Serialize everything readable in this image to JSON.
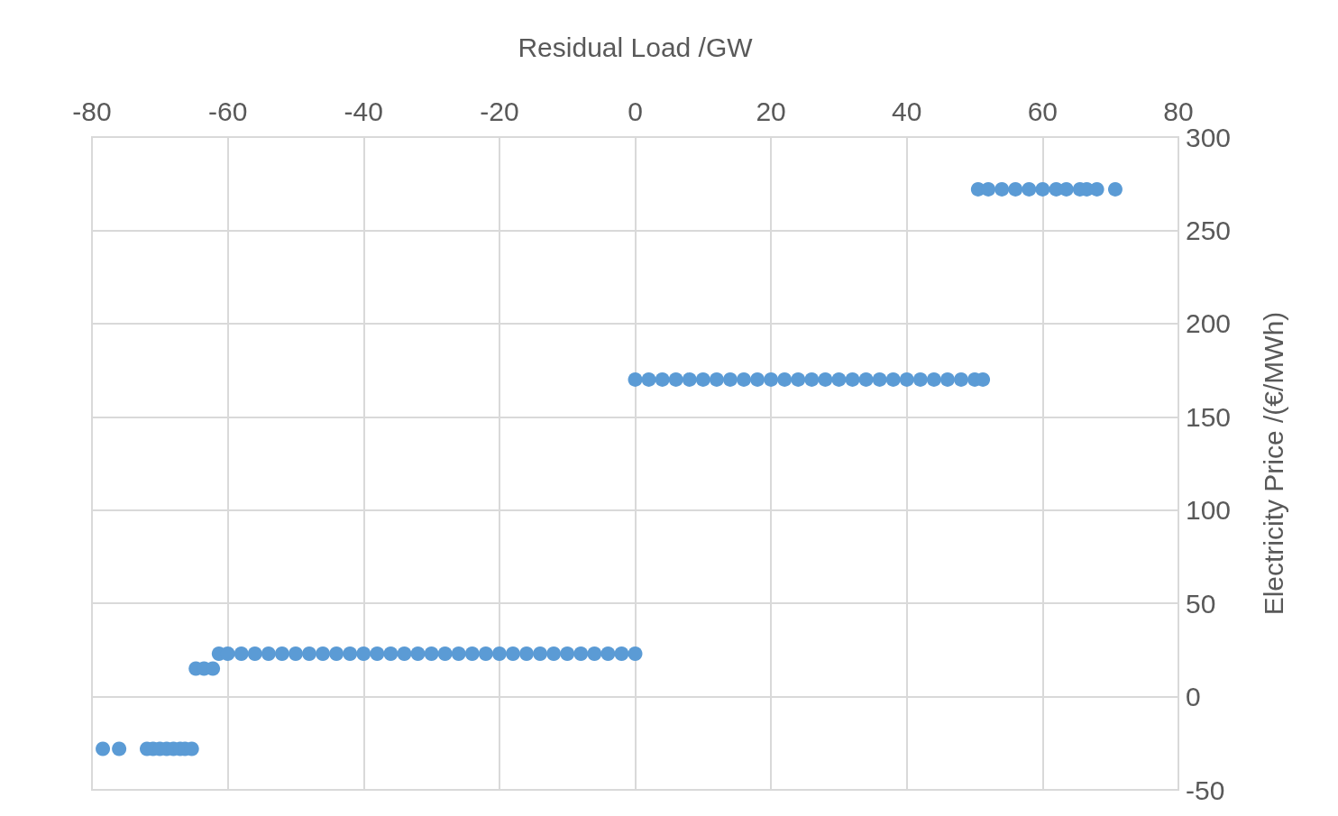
{
  "chart_data": {
    "type": "scatter",
    "xlabel": "Residual Load /GW",
    "ylabel": "Electricity Price /(€/MWh)",
    "xlim": [
      -80,
      80
    ],
    "xticks": [
      -80,
      -60,
      -40,
      -20,
      0,
      20,
      40,
      60,
      80
    ],
    "ylim": [
      -50,
      300
    ],
    "yticks": [
      -50,
      0,
      50,
      100,
      150,
      200,
      250,
      300
    ],
    "grid": true,
    "marker": "circle",
    "series": [
      {
        "color": "#5b9bd5",
        "x": [
          -78.4,
          -76,
          -71.9,
          -71,
          -70,
          -69,
          -68,
          -67,
          -66.3,
          -65.3,
          -64.7,
          -63.5,
          -62.2,
          -61.3,
          -60,
          -58,
          -56,
          -54,
          -52,
          -50,
          -48,
          -46,
          -44,
          -42,
          -40,
          -38,
          -36,
          -34,
          -32,
          -30,
          -28,
          -26,
          -24,
          -22,
          -20,
          -18,
          -16,
          -14,
          -12,
          -10,
          -8,
          -6,
          -4,
          -2,
          0,
          0,
          2,
          4,
          6,
          8,
          10,
          12,
          14,
          16,
          18,
          20,
          22,
          24,
          26,
          28,
          30,
          32,
          34,
          36,
          38,
          40,
          42,
          44,
          46,
          48,
          50,
          51.2,
          50.5,
          52,
          54,
          56,
          58,
          60,
          62,
          63.5,
          65.5,
          66.5,
          68,
          70.7
        ],
        "values": [
          -28,
          -28,
          -28,
          -28,
          -28,
          -28,
          -28,
          -28,
          -28,
          -28,
          15,
          15,
          15,
          23,
          23,
          23,
          23,
          23,
          23,
          23,
          23,
          23,
          23,
          23,
          23,
          23,
          23,
          23,
          23,
          23,
          23,
          23,
          23,
          23,
          23,
          23,
          23,
          23,
          23,
          23,
          23,
          23,
          23,
          23,
          23,
          170,
          170,
          170,
          170,
          170,
          170,
          170,
          170,
          170,
          170,
          170,
          170,
          170,
          170,
          170,
          170,
          170,
          170,
          170,
          170,
          170,
          170,
          170,
          170,
          170,
          170,
          170,
          272,
          272,
          272,
          272,
          272,
          272,
          272,
          272,
          272,
          272,
          272,
          272
        ]
      }
    ]
  }
}
